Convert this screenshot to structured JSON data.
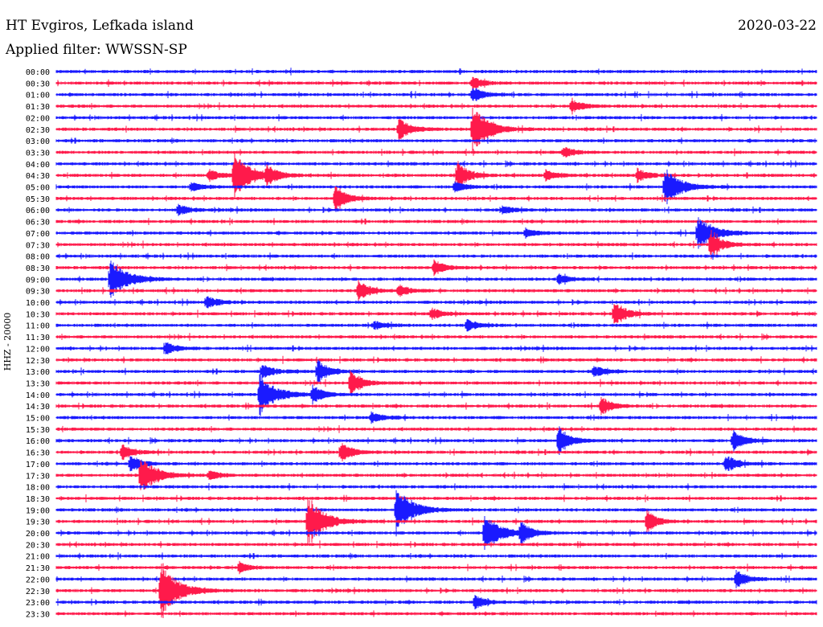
{
  "header": {
    "station": "HT Evgiros, Lefkada island",
    "date": "2020-03-22",
    "filter": "Applied filter: WWSSN-SP"
  },
  "chart_data": {
    "type": "line",
    "title": "HT Evgiros, Lefkada island",
    "ylabel": "HHZ - 20000",
    "rows": [
      "00:00",
      "00:30",
      "01:00",
      "01:30",
      "02:00",
      "02:30",
      "03:00",
      "03:30",
      "04:00",
      "04:30",
      "05:00",
      "05:30",
      "06:00",
      "06:30",
      "07:00",
      "07:30",
      "08:00",
      "08:30",
      "09:00",
      "09:30",
      "10:00",
      "10:30",
      "11:00",
      "11:30",
      "12:00",
      "12:30",
      "13:00",
      "13:30",
      "14:00",
      "14:30",
      "15:00",
      "15:30",
      "16:00",
      "16:30",
      "17:00",
      "17:30",
      "18:00",
      "18:30",
      "19:00",
      "19:30",
      "20:00",
      "20:30",
      "21:00",
      "21:30",
      "22:00",
      "22:30",
      "23:00",
      "23:30"
    ],
    "colors": {
      "even_rows": "#1a1aff",
      "odd_rows": "#ff1a4b"
    },
    "x_unit": "minutes within each 30-minute row",
    "x_range": [
      0,
      30
    ],
    "events": [
      {
        "row": "00:30",
        "x": 16.4,
        "amp": 8
      },
      {
        "row": "01:00",
        "x": 16.4,
        "amp": 10
      },
      {
        "row": "01:30",
        "x": 20.3,
        "amp": 9
      },
      {
        "row": "02:30",
        "x": 13.5,
        "amp": 16
      },
      {
        "row": "02:30",
        "x": 16.4,
        "amp": 30
      },
      {
        "row": "03:30",
        "x": 20.0,
        "amp": 7
      },
      {
        "row": "04:30",
        "x": 6.0,
        "amp": 8
      },
      {
        "row": "04:30",
        "x": 7.0,
        "amp": 30
      },
      {
        "row": "04:30",
        "x": 8.3,
        "amp": 12
      },
      {
        "row": "04:30",
        "x": 15.8,
        "amp": 20
      },
      {
        "row": "04:30",
        "x": 19.3,
        "amp": 7
      },
      {
        "row": "04:30",
        "x": 22.9,
        "amp": 9
      },
      {
        "row": "05:00",
        "x": 5.3,
        "amp": 6
      },
      {
        "row": "05:00",
        "x": 15.7,
        "amp": 7
      },
      {
        "row": "05:00",
        "x": 24.0,
        "amp": 24
      },
      {
        "row": "05:30",
        "x": 11.0,
        "amp": 18
      },
      {
        "row": "06:00",
        "x": 4.8,
        "amp": 7
      },
      {
        "row": "06:00",
        "x": 17.6,
        "amp": 5
      },
      {
        "row": "07:00",
        "x": 18.5,
        "amp": 6
      },
      {
        "row": "07:00",
        "x": 25.3,
        "amp": 22
      },
      {
        "row": "07:30",
        "x": 25.8,
        "amp": 20
      },
      {
        "row": "08:30",
        "x": 14.9,
        "amp": 9
      },
      {
        "row": "09:00",
        "x": 2.1,
        "amp": 28
      },
      {
        "row": "09:00",
        "x": 19.8,
        "amp": 7
      },
      {
        "row": "09:30",
        "x": 11.9,
        "amp": 14
      },
      {
        "row": "09:30",
        "x": 13.5,
        "amp": 8
      },
      {
        "row": "10:00",
        "x": 5.9,
        "amp": 9
      },
      {
        "row": "10:30",
        "x": 14.8,
        "amp": 7
      },
      {
        "row": "10:30",
        "x": 22.0,
        "amp": 18
      },
      {
        "row": "11:00",
        "x": 12.5,
        "amp": 6
      },
      {
        "row": "11:00",
        "x": 16.2,
        "amp": 7
      },
      {
        "row": "12:00",
        "x": 4.3,
        "amp": 8
      },
      {
        "row": "13:00",
        "x": 8.1,
        "amp": 10
      },
      {
        "row": "13:00",
        "x": 10.3,
        "amp": 16
      },
      {
        "row": "13:00",
        "x": 21.2,
        "amp": 7
      },
      {
        "row": "13:30",
        "x": 11.6,
        "amp": 18
      },
      {
        "row": "14:00",
        "x": 8.0,
        "amp": 26
      },
      {
        "row": "14:00",
        "x": 10.1,
        "amp": 12
      },
      {
        "row": "14:30",
        "x": 21.5,
        "amp": 12
      },
      {
        "row": "15:00",
        "x": 12.4,
        "amp": 8
      },
      {
        "row": "16:00",
        "x": 19.8,
        "amp": 20
      },
      {
        "row": "16:00",
        "x": 26.7,
        "amp": 14
      },
      {
        "row": "16:30",
        "x": 2.6,
        "amp": 10
      },
      {
        "row": "16:30",
        "x": 11.2,
        "amp": 14
      },
      {
        "row": "17:00",
        "x": 2.9,
        "amp": 12
      },
      {
        "row": "17:00",
        "x": 26.4,
        "amp": 12
      },
      {
        "row": "17:30",
        "x": 3.3,
        "amp": 24
      },
      {
        "row": "17:30",
        "x": 6.0,
        "amp": 6
      },
      {
        "row": "19:00",
        "x": 13.4,
        "amp": 30
      },
      {
        "row": "19:30",
        "x": 9.9,
        "amp": 34
      },
      {
        "row": "19:30",
        "x": 23.3,
        "amp": 14
      },
      {
        "row": "20:00",
        "x": 16.9,
        "amp": 24
      },
      {
        "row": "20:00",
        "x": 18.3,
        "amp": 14
      },
      {
        "row": "21:30",
        "x": 7.2,
        "amp": 7
      },
      {
        "row": "22:00",
        "x": 26.8,
        "amp": 12
      },
      {
        "row": "22:30",
        "x": 4.1,
        "amp": 40
      },
      {
        "row": "23:00",
        "x": 16.5,
        "amp": 9
      }
    ]
  }
}
